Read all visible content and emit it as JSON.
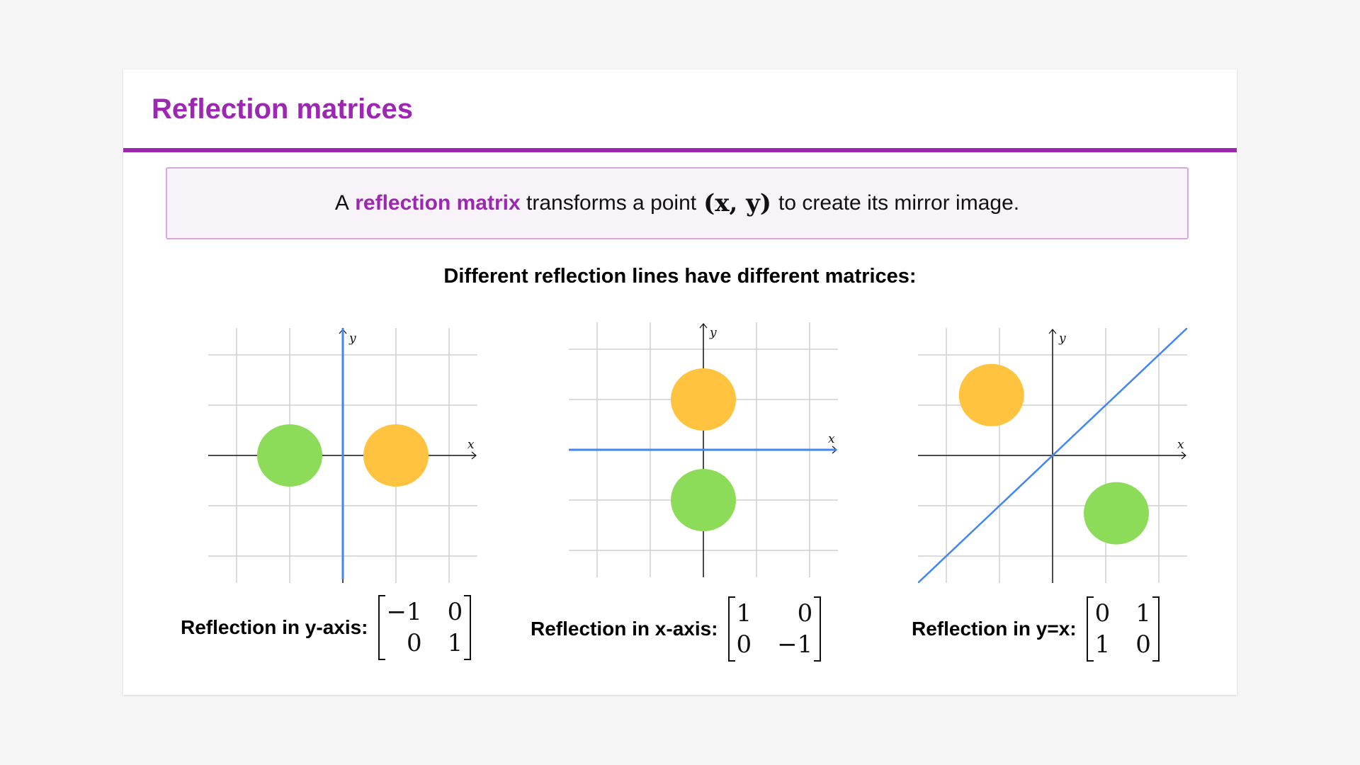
{
  "slide": {
    "title": "Reflection matrices",
    "info": {
      "prefix": "A",
      "highlight": "reflection matrix",
      "middle": "transforms a point",
      "math": "(x, y)",
      "suffix": "to create its mirror image."
    },
    "subtitle": "Different reflection lines have different matrices:"
  },
  "colors": {
    "accent": "#9c27b0",
    "line": "#4285f4",
    "original": "#ffc340",
    "image": "#8cdc5a",
    "grid": "#d0d0d0"
  },
  "diagrams": [
    {
      "label": "Reflection in y-axis:",
      "mirror": "y-axis",
      "axis_x": "x",
      "axis_y": "y",
      "original": [
        1,
        0
      ],
      "image": [
        -1,
        0
      ],
      "matrix": [
        "−1",
        "0",
        "0",
        "1"
      ]
    },
    {
      "label": "Reflection in x-axis:",
      "mirror": "x-axis",
      "axis_x": "x",
      "axis_y": "y",
      "original": [
        0,
        1
      ],
      "image": [
        0,
        -1
      ],
      "matrix": [
        "1",
        "0",
        "0",
        "−1"
      ]
    },
    {
      "label": "Reflection in y=x:",
      "mirror": "y=x",
      "axis_x": "x",
      "axis_y": "y",
      "original": [
        -1.15,
        1.2
      ],
      "image": [
        1.2,
        -1.15
      ],
      "matrix": [
        "0",
        "1",
        "1",
        "0"
      ]
    }
  ]
}
